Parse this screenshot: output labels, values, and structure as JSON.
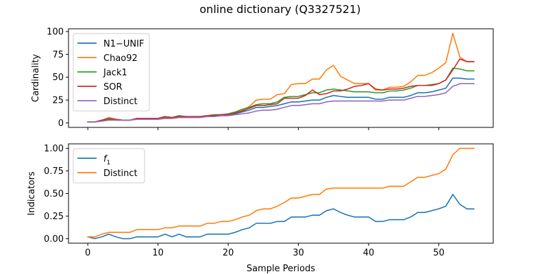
{
  "title": "online dictionary (Q3327521)",
  "chart_data": [
    {
      "type": "line",
      "ylabel": "Cardinality",
      "xlim": [
        -2.75,
        57.75
      ],
      "ylim": [
        -4.9,
        103
      ],
      "yticks": [
        0,
        25,
        50,
        75,
        100
      ],
      "xticks": [
        0,
        10,
        20,
        30,
        40,
        50
      ],
      "show_xtick_labels": false,
      "legend": "top-left",
      "x": [
        0,
        1,
        2,
        3,
        4,
        5,
        6,
        7,
        8,
        9,
        10,
        11,
        12,
        13,
        14,
        15,
        16,
        17,
        18,
        19,
        20,
        21,
        22,
        23,
        24,
        25,
        26,
        27,
        28,
        29,
        30,
        31,
        32,
        33,
        34,
        35,
        36,
        37,
        38,
        39,
        40,
        41,
        42,
        43,
        44,
        45,
        46,
        47,
        48,
        49,
        50,
        51,
        52,
        53,
        54,
        55
      ],
      "series": [
        {
          "name": "N1−UNIF",
          "color": "#1f77b4",
          "values": [
            1,
            1,
            3,
            4,
            3,
            3,
            3,
            4,
            4,
            4,
            4,
            5,
            5,
            6,
            6,
            6,
            6,
            7,
            7,
            8,
            8,
            10,
            12,
            14,
            17,
            17,
            18,
            19,
            21,
            23,
            23,
            24,
            25,
            25,
            28,
            30,
            29,
            28,
            28,
            28,
            28,
            26,
            26,
            28,
            28,
            28,
            30,
            33,
            33,
            34,
            36,
            38,
            49,
            49,
            48,
            48
          ]
        },
        {
          "name": "Chao92",
          "color": "#ff7f0e",
          "values": [
            1,
            1,
            3,
            6,
            4,
            3,
            3,
            4,
            4,
            4,
            4,
            5,
            5,
            6,
            6,
            6,
            6,
            7,
            8,
            9,
            9,
            11,
            14,
            18,
            25,
            26,
            26,
            31,
            32,
            42,
            43,
            43,
            48,
            48,
            58,
            63,
            51,
            47,
            43,
            43,
            43,
            36,
            36,
            39,
            39,
            40,
            45,
            52,
            52,
            55,
            60,
            66,
            98,
            72,
            67,
            67
          ]
        },
        {
          "name": "Jack1",
          "color": "#2ca02c",
          "values": [
            1,
            1,
            3,
            5,
            4,
            3,
            3,
            5,
            5,
            5,
            5,
            6,
            6,
            8,
            7,
            7,
            7,
            8,
            9,
            9,
            10,
            12,
            15,
            17,
            20,
            21,
            21,
            23,
            28,
            29,
            29,
            31,
            33,
            33,
            36,
            37,
            36,
            35,
            34,
            34,
            34,
            33,
            33,
            35,
            35,
            36,
            38,
            41,
            41,
            42,
            43,
            47,
            60,
            59,
            57,
            57
          ]
        },
        {
          "name": "SOR",
          "color": "#d62728",
          "values": [
            1,
            1,
            3,
            4,
            4,
            3,
            3,
            5,
            5,
            5,
            5,
            7,
            6,
            7,
            7,
            7,
            7,
            8,
            8,
            9,
            9,
            11,
            13,
            16,
            19,
            19,
            20,
            21,
            27,
            27,
            27,
            30,
            36,
            31,
            32,
            35,
            35,
            37,
            40,
            41,
            43,
            37,
            36,
            37,
            37,
            38,
            40,
            41,
            41,
            41,
            43,
            47,
            58,
            70,
            67,
            67
          ]
        },
        {
          "name": "Distinct",
          "color": "#9467bd",
          "values": [
            1,
            1,
            2,
            3,
            3,
            3,
            3,
            4,
            4,
            4,
            4,
            5,
            5,
            6,
            6,
            6,
            6,
            7,
            7,
            8,
            8,
            9,
            10,
            11,
            13,
            14,
            14,
            15,
            17,
            19,
            19,
            20,
            21,
            21,
            23,
            24,
            24,
            24,
            24,
            24,
            24,
            24,
            24,
            25,
            25,
            25,
            27,
            29,
            29,
            30,
            31,
            33,
            40,
            43,
            43,
            43
          ]
        }
      ]
    },
    {
      "type": "line",
      "ylabel": "Indicators",
      "xlabel": "Sample Periods",
      "xlim": [
        -2.75,
        57.75
      ],
      "ylim": [
        -0.05,
        1.05
      ],
      "yticks": [
        0.0,
        0.25,
        0.5,
        0.75,
        1.0
      ],
      "ytick_labels": [
        "0.00",
        "0.25",
        "0.50",
        "0.75",
        "1.00"
      ],
      "xticks": [
        0,
        10,
        20,
        30,
        40,
        50
      ],
      "xtick_labels": [
        "0",
        "10",
        "20",
        "30",
        "40",
        "50"
      ],
      "show_xtick_labels": true,
      "legend": "top-left",
      "x": [
        0,
        1,
        2,
        3,
        4,
        5,
        6,
        7,
        8,
        9,
        10,
        11,
        12,
        13,
        14,
        15,
        16,
        17,
        18,
        19,
        20,
        21,
        22,
        23,
        24,
        25,
        26,
        27,
        28,
        29,
        30,
        31,
        32,
        33,
        34,
        35,
        36,
        37,
        38,
        39,
        40,
        41,
        42,
        43,
        44,
        45,
        46,
        47,
        48,
        49,
        50,
        51,
        52,
        53,
        54,
        55
      ],
      "series": [
        {
          "name": "f1",
          "label_main": "f",
          "label_sub": "1",
          "color": "#1f77b4",
          "values": [
            0.02,
            0.0,
            0.02,
            0.05,
            0.02,
            0.0,
            0.0,
            0.02,
            0.02,
            0.02,
            0.02,
            0.05,
            0.02,
            0.05,
            0.02,
            0.02,
            0.02,
            0.05,
            0.05,
            0.05,
            0.05,
            0.07,
            0.1,
            0.12,
            0.17,
            0.17,
            0.17,
            0.19,
            0.19,
            0.24,
            0.24,
            0.24,
            0.26,
            0.26,
            0.31,
            0.33,
            0.29,
            0.26,
            0.24,
            0.24,
            0.24,
            0.19,
            0.19,
            0.21,
            0.21,
            0.21,
            0.24,
            0.29,
            0.29,
            0.31,
            0.33,
            0.36,
            0.49,
            0.38,
            0.33,
            0.33
          ]
        },
        {
          "name": "Distinct",
          "color": "#ff7f0e",
          "values": [
            0.02,
            0.02,
            0.05,
            0.07,
            0.07,
            0.07,
            0.07,
            0.1,
            0.1,
            0.1,
            0.1,
            0.12,
            0.12,
            0.14,
            0.14,
            0.14,
            0.14,
            0.17,
            0.17,
            0.19,
            0.19,
            0.21,
            0.24,
            0.26,
            0.31,
            0.33,
            0.33,
            0.36,
            0.4,
            0.45,
            0.45,
            0.47,
            0.49,
            0.49,
            0.55,
            0.56,
            0.56,
            0.56,
            0.56,
            0.56,
            0.56,
            0.56,
            0.56,
            0.58,
            0.58,
            0.58,
            0.63,
            0.68,
            0.68,
            0.7,
            0.72,
            0.77,
            0.93,
            1.0,
            1.0,
            1.0
          ]
        }
      ]
    }
  ]
}
